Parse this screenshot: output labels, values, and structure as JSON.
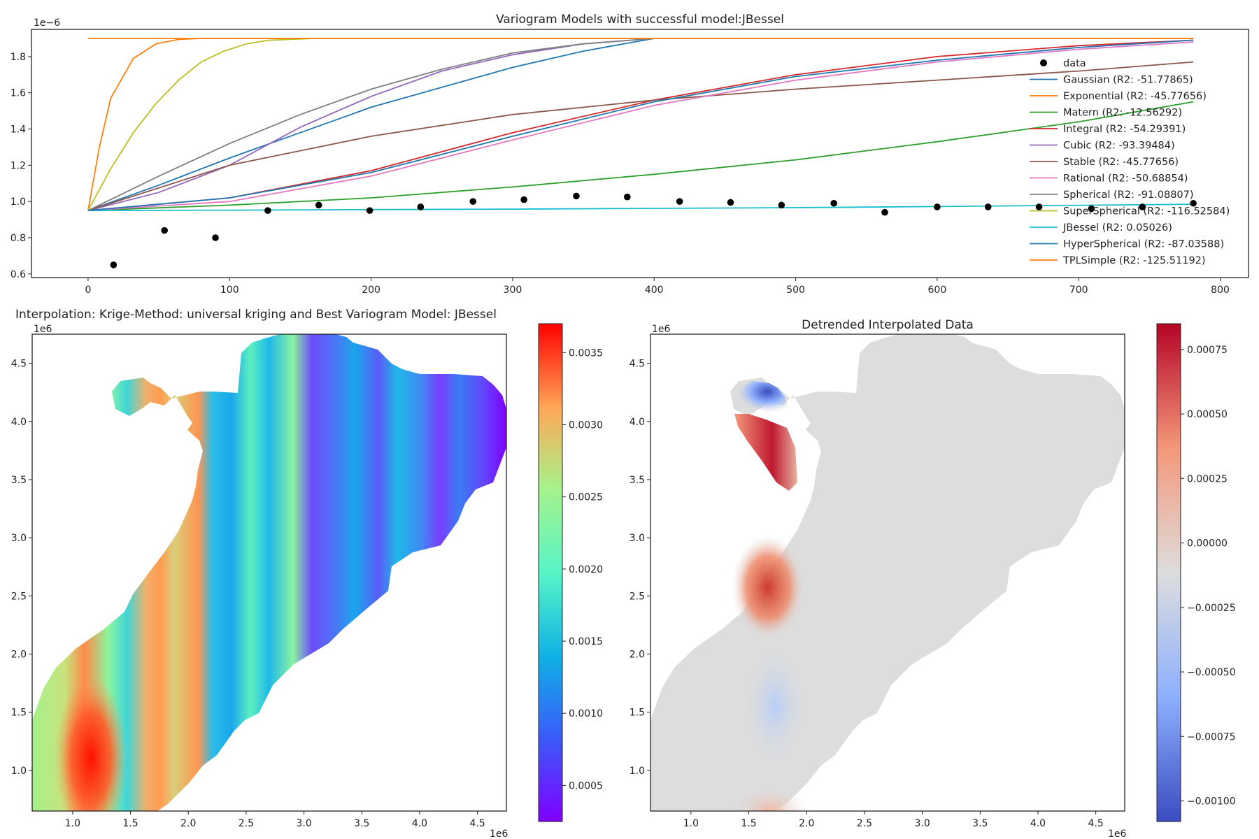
{
  "variogram": {
    "title": "Variogram Models with successful model:JBessel",
    "y_offset_label": "1e−6",
    "chart_data": {
      "type": "line",
      "title": "Variogram Models with successful model:JBessel",
      "xlim": [
        -40,
        820
      ],
      "ylim": [
        0.58,
        1.95
      ],
      "x_ticks": [
        0,
        100,
        200,
        300,
        400,
        500,
        600,
        700,
        800
      ],
      "y_ticks": [
        0.6,
        0.8,
        1.0,
        1.2,
        1.4,
        1.6,
        1.8
      ],
      "y_scale_multiplier": "1e-6",
      "legend_position": "right",
      "points": {
        "name": "data",
        "x": [
          18,
          54,
          90,
          127,
          163,
          199,
          235,
          272,
          308,
          345,
          381,
          418,
          454,
          490,
          527,
          563,
          600,
          636,
          672,
          709,
          745,
          781
        ],
        "y": [
          0.65,
          0.84,
          0.8,
          0.95,
          0.98,
          0.95,
          0.97,
          1.0,
          1.01,
          1.03,
          1.025,
          1.0,
          0.995,
          0.98,
          0.99,
          0.94,
          0.97,
          0.97,
          0.97,
          0.96,
          0.97,
          0.99
        ]
      },
      "series": [
        {
          "name": "Gaussian (R2: -51.77865)",
          "color": "#1f77b4",
          "x": [
            0,
            50,
            100,
            150,
            200,
            250,
            300,
            350,
            400,
            450,
            500,
            600,
            700,
            781
          ],
          "y": [
            0.95,
            1.09,
            1.24,
            1.38,
            1.52,
            1.63,
            1.74,
            1.83,
            1.9,
            1.9,
            1.9,
            1.9,
            1.9,
            1.9
          ]
        },
        {
          "name": "Exponential (R2: -45.77656)",
          "color": "#ff7f0e",
          "x": [
            0,
            8,
            16,
            32,
            48,
            64,
            80,
            100,
            150,
            200,
            300,
            400,
            500,
            600,
            700,
            781
          ],
          "y": [
            0.95,
            1.3,
            1.57,
            1.79,
            1.87,
            1.895,
            1.9,
            1.9,
            1.9,
            1.9,
            1.9,
            1.9,
            1.9,
            1.9,
            1.9,
            1.9
          ]
        },
        {
          "name": "Matern (R2: -12.56292)",
          "color": "#2ca02c",
          "x": [
            0,
            100,
            200,
            300,
            400,
            500,
            600,
            700,
            781
          ],
          "y": [
            0.95,
            0.98,
            1.02,
            1.08,
            1.15,
            1.23,
            1.33,
            1.44,
            1.55
          ]
        },
        {
          "name": "Integral (R2: -54.29391)",
          "color": "#d62728",
          "x": [
            0,
            100,
            200,
            300,
            400,
            500,
            600,
            700,
            781
          ],
          "y": [
            0.95,
            1.02,
            1.17,
            1.38,
            1.56,
            1.7,
            1.8,
            1.86,
            1.89
          ]
        },
        {
          "name": "Cubic (R2: -93.39484)",
          "color": "#9467bd",
          "x": [
            0,
            50,
            100,
            150,
            200,
            250,
            300,
            350,
            400,
            450,
            500,
            600,
            700,
            781
          ],
          "y": [
            0.95,
            1.05,
            1.2,
            1.41,
            1.58,
            1.72,
            1.81,
            1.87,
            1.9,
            1.9,
            1.9,
            1.9,
            1.9,
            1.9
          ]
        },
        {
          "name": "Stable (R2: -45.77656)",
          "color": "#8c564b",
          "x": [
            0,
            100,
            200,
            300,
            400,
            500,
            600,
            700,
            781
          ],
          "y": [
            0.95,
            1.2,
            1.36,
            1.48,
            1.56,
            1.62,
            1.67,
            1.72,
            1.77
          ]
        },
        {
          "name": "Rational (R2: -50.68854)",
          "color": "#e377c2",
          "x": [
            0,
            100,
            200,
            300,
            400,
            500,
            600,
            700,
            781
          ],
          "y": [
            0.95,
            1.0,
            1.14,
            1.34,
            1.53,
            1.67,
            1.77,
            1.84,
            1.88
          ]
        },
        {
          "name": "Spherical (R2: -91.08807)",
          "color": "#7f7f7f",
          "x": [
            0,
            50,
            100,
            150,
            200,
            250,
            300,
            350,
            400,
            450,
            500,
            600,
            700,
            781
          ],
          "y": [
            0.95,
            1.14,
            1.32,
            1.48,
            1.62,
            1.73,
            1.82,
            1.87,
            1.9,
            1.9,
            1.9,
            1.9,
            1.9,
            1.9
          ]
        },
        {
          "name": "SuperSpherical (R2: -116.52584)",
          "color": "#bcbd22",
          "x": [
            0,
            16,
            32,
            48,
            64,
            80,
            96,
            112,
            128,
            160,
            200,
            300,
            400,
            500,
            600,
            700,
            781
          ],
          "y": [
            0.95,
            1.18,
            1.38,
            1.54,
            1.67,
            1.77,
            1.83,
            1.87,
            1.89,
            1.9,
            1.9,
            1.9,
            1.9,
            1.9,
            1.9,
            1.9,
            1.9
          ]
        },
        {
          "name": "JBessel (R2: 0.05026)",
          "color": "#17becf",
          "x": [
            0,
            100,
            200,
            300,
            400,
            500,
            600,
            700,
            781
          ],
          "y": [
            0.95,
            0.952,
            0.955,
            0.958,
            0.962,
            0.966,
            0.972,
            0.979,
            0.985
          ]
        },
        {
          "name": "HyperSpherical (R2: -87.03588)",
          "color": "#1f77b4",
          "x": [
            0,
            100,
            200,
            300,
            400,
            500,
            600,
            700,
            781
          ],
          "y": [
            0.95,
            1.02,
            1.16,
            1.36,
            1.55,
            1.69,
            1.78,
            1.85,
            1.89
          ]
        },
        {
          "name": "TPLSimple (R2: -125.51192)",
          "color": "#ff7f0e",
          "x": [
            0,
            100,
            200,
            300,
            400,
            500,
            600,
            700,
            781
          ],
          "y": [
            1.9,
            1.9,
            1.9,
            1.9,
            1.9,
            1.9,
            1.9,
            1.9,
            1.9
          ]
        }
      ]
    }
  },
  "interp": {
    "title": "Interpolation: Krige-Method: universal kriging and Best Variogram Model: JBessel",
    "x_offset_label": "1e6",
    "y_offset_label": "1e6",
    "chart_data": {
      "type": "heatmap",
      "colormap": "rainbow",
      "xlim": [
        0.65,
        4.75
      ],
      "ylim": [
        0.65,
        4.75
      ],
      "x_ticks": [
        1.0,
        1.5,
        2.0,
        2.5,
        3.0,
        3.5,
        4.0,
        4.5
      ],
      "y_ticks": [
        1.0,
        1.5,
        2.0,
        2.5,
        3.0,
        3.5,
        4.0,
        4.5
      ],
      "colorbar_range": [
        0.00025,
        0.0037
      ],
      "colorbar_ticks": [
        0.0005,
        0.001,
        0.0015,
        0.002,
        0.0025,
        0.003,
        0.0035
      ],
      "colorbar_tick_labels": [
        "0.0005",
        "0.0010",
        "0.0015",
        "0.0020",
        "0.0025",
        "0.0030",
        "0.0035"
      ]
    }
  },
  "detrend": {
    "title": "Detrended Interpolated Data",
    "x_offset_label": "1e6",
    "y_offset_label": "1e6",
    "chart_data": {
      "type": "heatmap",
      "colormap": "coolwarm",
      "xlim": [
        0.65,
        4.75
      ],
      "ylim": [
        0.65,
        4.75
      ],
      "x_ticks": [
        1.0,
        1.5,
        2.0,
        2.5,
        3.0,
        3.5,
        4.0,
        4.5
      ],
      "y_ticks": [
        1.0,
        1.5,
        2.0,
        2.5,
        3.0,
        3.5,
        4.0,
        4.5
      ],
      "colorbar_range": [
        -0.00108,
        0.00085
      ],
      "colorbar_ticks": [
        -0.001,
        -0.00075,
        -0.0005,
        -0.00025,
        0.0,
        0.00025,
        0.0005,
        0.00075
      ],
      "colorbar_tick_labels": [
        "−0.00100",
        "−0.00075",
        "−0.00050",
        "−0.00025",
        "0.00000",
        "0.00025",
        "0.00050",
        "0.00075"
      ]
    }
  }
}
